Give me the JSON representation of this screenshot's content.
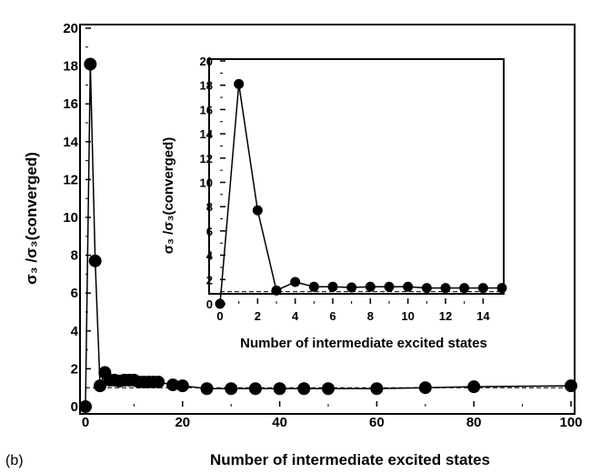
{
  "panel_label": "(b)",
  "chart_data": [
    {
      "type": "line",
      "xlabel": "Number of intermediate excited states",
      "ylabel_main": "σ₃ /σ₃(converged)",
      "xlim": [
        0,
        100
      ],
      "ylim": [
        0,
        20
      ],
      "xticks": [
        "0",
        "20",
        "40",
        "60",
        "80",
        "100"
      ],
      "yticks": [
        "0",
        "2",
        "4",
        "6",
        "8",
        "10",
        "12",
        "14",
        "16",
        "18",
        "20"
      ],
      "reference_line_y": 1.0,
      "series": [
        {
          "x": [
            0,
            1,
            2,
            3,
            4,
            5,
            6,
            7,
            8,
            9,
            10,
            11,
            12,
            13,
            14,
            15,
            18,
            20,
            25,
            30,
            35,
            40,
            45,
            50,
            60,
            70,
            80,
            100
          ],
          "y": [
            0.0,
            18.1,
            7.7,
            1.1,
            1.8,
            1.4,
            1.4,
            1.35,
            1.4,
            1.4,
            1.4,
            1.3,
            1.3,
            1.3,
            1.3,
            1.3,
            1.15,
            1.1,
            0.95,
            0.95,
            0.95,
            0.95,
            0.95,
            0.95,
            0.95,
            1.0,
            1.05,
            1.1
          ]
        }
      ]
    },
    {
      "type": "line",
      "inset": true,
      "xlabel": "Number of intermediate excited states",
      "ylabel_main": "σ₃ /σ₃(converged)",
      "xlim": [
        0,
        15
      ],
      "ylim": [
        0,
        20
      ],
      "xticks": [
        "0",
        "2",
        "4",
        "6",
        "8",
        "10",
        "12",
        "14"
      ],
      "yticks": [
        "0",
        "2",
        "4",
        "6",
        "8",
        "10",
        "12",
        "14",
        "16",
        "18",
        "20"
      ],
      "reference_line_y": 1.0,
      "series": [
        {
          "x": [
            0,
            1,
            2,
            3,
            4,
            5,
            6,
            7,
            8,
            9,
            10,
            11,
            12,
            13,
            14,
            15
          ],
          "y": [
            0.0,
            18.1,
            7.7,
            1.1,
            1.8,
            1.4,
            1.4,
            1.35,
            1.4,
            1.4,
            1.4,
            1.3,
            1.3,
            1.3,
            1.3,
            1.3
          ]
        }
      ]
    }
  ]
}
